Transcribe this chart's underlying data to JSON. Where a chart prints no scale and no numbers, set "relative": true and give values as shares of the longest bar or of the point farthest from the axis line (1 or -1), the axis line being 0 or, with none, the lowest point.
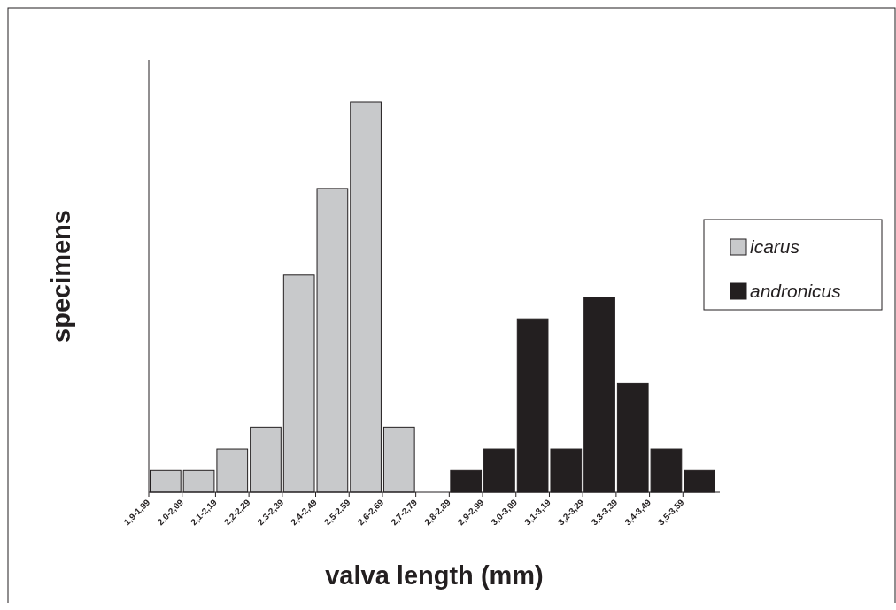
{
  "chart_data": {
    "type": "bar",
    "relative": true,
    "xlabel": "valva length (mm)",
    "ylabel": "specimens",
    "legend": "right",
    "categories": [
      "1,9-1,99",
      "2,0-2,09",
      "2,1-2,19",
      "2,2-2,29",
      "2,3-2,39",
      "2,4-2,49",
      "2,5-2,59",
      "2,6-2,69",
      "2,7-2,79",
      "2,8-2,89",
      "2,9-2,99",
      "3,0-3,09",
      "3,1-3,19",
      "3,2-3,29",
      "3,3-3,39",
      "3,4-3,49",
      "3,5-3,59"
    ],
    "series": [
      {
        "name": "icarus",
        "color": "#c8c9cb",
        "values": [
          0.056,
          0.056,
          0.111,
          0.167,
          0.556,
          0.778,
          1,
          0.167,
          null,
          null,
          null,
          null,
          null,
          null,
          null,
          null,
          null
        ]
      },
      {
        "name": "andronicus",
        "color": "#231f20",
        "values": [
          null,
          null,
          null,
          null,
          null,
          null,
          null,
          null,
          null,
          0.056,
          0.111,
          0.444,
          0.111,
          0.5,
          0.278,
          0.111,
          0.056
        ]
      }
    ]
  }
}
